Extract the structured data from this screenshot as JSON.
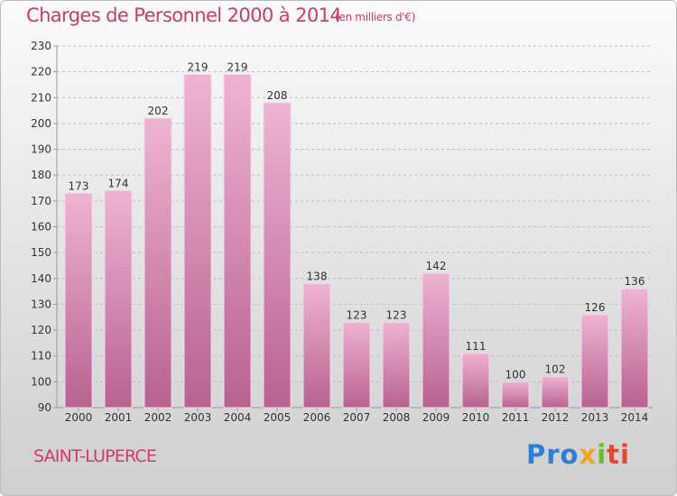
{
  "header": {
    "title": "Charges de Personnel 2000 à 2014",
    "subtitle": "(en milliers d'€)"
  },
  "footer": {
    "location": "SAINT-LUPERCE",
    "logo_text": "Proxiti"
  },
  "colors": {
    "bar_light": "#eeb3d3",
    "bar_dark": "#b8628f",
    "text_accent": "#cc3a6e"
  },
  "chart_data": {
    "type": "bar",
    "title": "Charges de Personnel 2000 à 2014",
    "subtitle": "(en milliers d'€)",
    "categories": [
      "2000",
      "2001",
      "2002",
      "2003",
      "2004",
      "2005",
      "2006",
      "2007",
      "2008",
      "2009",
      "2010",
      "2011",
      "2012",
      "2013",
      "2014"
    ],
    "values": [
      173,
      174,
      202,
      219,
      219,
      208,
      138,
      123,
      123,
      142,
      111,
      100,
      102,
      126,
      136
    ],
    "ylim": [
      90,
      230
    ],
    "yticks": [
      90,
      100,
      110,
      120,
      130,
      140,
      150,
      160,
      170,
      180,
      190,
      200,
      210,
      220,
      230
    ],
    "grid": true,
    "legend": "none"
  }
}
